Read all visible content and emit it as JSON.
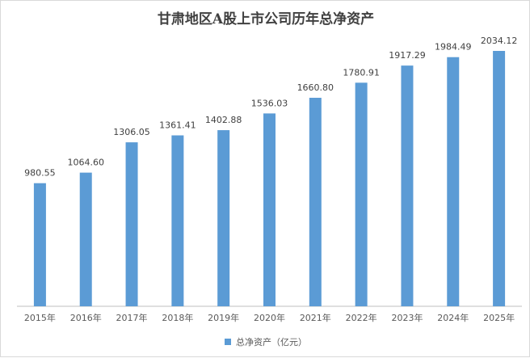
{
  "chart_data": {
    "type": "bar",
    "title": "甘肃地区A股上市公司历年总净资产",
    "categories": [
      "2015年",
      "2016年",
      "2017年",
      "2018年",
      "2019年",
      "2020年",
      "2021年",
      "2022年",
      "2023年",
      "2024年",
      "2025年"
    ],
    "series": [
      {
        "name": "总净资产（亿元）",
        "values": [
          980.55,
          1064.6,
          1306.05,
          1361.41,
          1402.88,
          1536.03,
          1660.8,
          1780.91,
          1917.29,
          1984.49,
          2034.12
        ],
        "labels": [
          "980.55",
          "1064.60",
          "1306.05",
          "1361.41",
          "1402.88",
          "1536.03",
          "1660.80",
          "1780.91",
          "1917.29",
          "1984.49",
          "2034.12"
        ]
      }
    ],
    "ylim": [
      0,
      2034.12
    ],
    "grid": false,
    "legend": "bottom",
    "bar_color": "#5b9bd5"
  }
}
